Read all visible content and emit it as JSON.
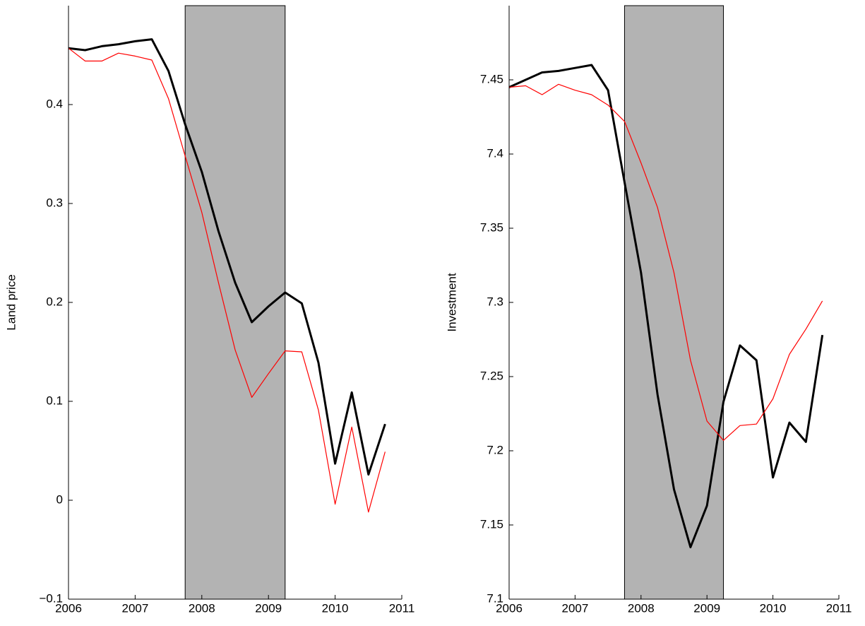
{
  "chart_data": [
    {
      "type": "line",
      "ylabel": "Land price",
      "x": [
        2006,
        2006.25,
        2006.5,
        2006.75,
        2007,
        2007.25,
        2007.5,
        2007.75,
        2008,
        2008.25,
        2008.5,
        2008.75,
        2009,
        2009.25,
        2009.5,
        2009.75,
        2010,
        2010.25,
        2010.5,
        2010.75
      ],
      "series": [
        {
          "color": "#000000",
          "values": [
            0.457,
            0.455,
            0.459,
            0.461,
            0.464,
            0.466,
            0.434,
            0.38,
            0.332,
            0.272,
            0.22,
            0.18,
            0.196,
            0.21,
            0.199,
            0.139,
            0.037,
            0.109,
            0.026,
            0.077
          ]
        },
        {
          "color": "#ff0000",
          "values": [
            0.457,
            0.444,
            0.444,
            0.452,
            0.449,
            0.445,
            0.406,
            0.348,
            0.291,
            0.22,
            0.152,
            0.104,
            0.128,
            0.151,
            0.15,
            0.091,
            -0.004,
            0.074,
            -0.012,
            0.049
          ]
        }
      ],
      "shaded_region": [
        2007.75,
        2009.25
      ],
      "shade_color": "#b3b3b3",
      "xlim": [
        2006,
        2011
      ],
      "xticks": [
        2006,
        2007,
        2008,
        2009,
        2010,
        2011
      ],
      "ylim": [
        -0.1,
        0.5
      ],
      "yticks": [
        {
          "value": -0.1,
          "label": "−0.1"
        },
        0,
        0.1,
        0.2,
        0.3,
        0.4
      ]
    },
    {
      "type": "line",
      "ylabel": "Investment",
      "x": [
        2006,
        2006.25,
        2006.5,
        2006.75,
        2007,
        2007.25,
        2007.5,
        2007.75,
        2008,
        2008.25,
        2008.5,
        2008.75,
        2009,
        2009.25,
        2009.5,
        2009.75,
        2010,
        2010.25,
        2010.5,
        2010.75
      ],
      "series": [
        {
          "color": "#000000",
          "values": [
            7.445,
            7.45,
            7.455,
            7.456,
            7.458,
            7.46,
            7.443,
            7.381,
            7.32,
            7.238,
            7.174,
            7.135,
            7.163,
            7.233,
            7.271,
            7.261,
            7.182,
            7.219,
            7.206,
            7.278
          ]
        },
        {
          "color": "#ff0000",
          "values": [
            7.445,
            7.446,
            7.44,
            7.447,
            7.443,
            7.44,
            7.433,
            7.422,
            7.394,
            7.364,
            7.32,
            7.261,
            7.22,
            7.207,
            7.217,
            7.218,
            7.235,
            7.265,
            7.282,
            7.301
          ]
        }
      ],
      "shaded_region": [
        2007.75,
        2009.25
      ],
      "shade_color": "#b3b3b3",
      "xlim": [
        2006,
        2011
      ],
      "xticks": [
        2006,
        2007,
        2008,
        2009,
        2010,
        2011
      ],
      "ylim": [
        7.1,
        7.5
      ],
      "yticks": [
        7.1,
        7.15,
        7.2,
        7.25,
        7.3,
        7.35,
        7.4,
        7.45
      ]
    }
  ]
}
